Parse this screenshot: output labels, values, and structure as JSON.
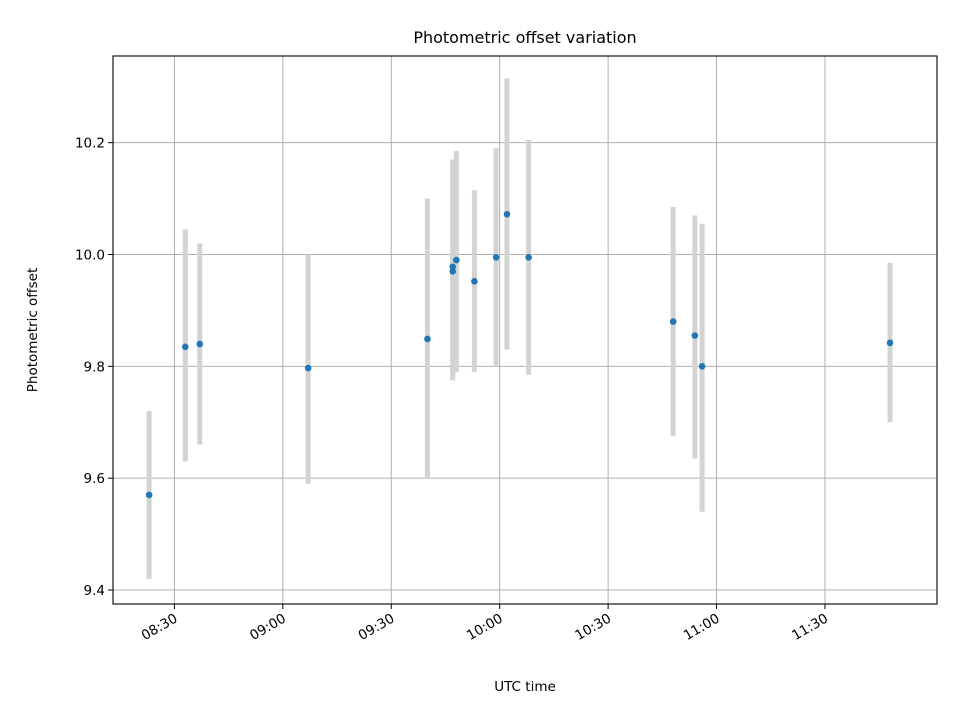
{
  "chart_data": {
    "type": "scatter",
    "title": "Photometric offset variation",
    "xlabel": "UTC time",
    "ylabel": "Photometric offset",
    "x_unit": "UTC clock time (HH:MM)",
    "xlim": [
      "08:13",
      "12:01"
    ],
    "ylim": [
      9.375,
      10.355
    ],
    "x_ticks": [
      "08:30",
      "09:00",
      "09:30",
      "10:00",
      "10:30",
      "11:00",
      "11:30"
    ],
    "y_ticks": [
      9.4,
      9.6,
      9.8,
      10.0,
      10.2
    ],
    "y_tick_labels": [
      "9.4",
      "9.6",
      "9.8",
      "10.0",
      "10.2"
    ],
    "grid": true,
    "legend": "none",
    "colors": {
      "points": "#1f77b4",
      "error_bars": "#d3d3d3"
    },
    "points": [
      {
        "x": "08:23",
        "y": 9.57,
        "ylo": 9.42,
        "yhi": 9.72
      },
      {
        "x": "08:33",
        "y": 9.835,
        "ylo": 9.63,
        "yhi": 10.045
      },
      {
        "x": "08:37",
        "y": 9.84,
        "ylo": 9.66,
        "yhi": 10.02
      },
      {
        "x": "09:07",
        "y": 9.797,
        "ylo": 9.59,
        "yhi": 10.0
      },
      {
        "x": "09:40",
        "y": 9.849,
        "ylo": 9.6,
        "yhi": 10.1
      },
      {
        "x": "09:47",
        "y": 9.97,
        "ylo": 9.775,
        "yhi": 10.16
      },
      {
        "x": "09:47",
        "y": 9.978,
        "ylo": 9.79,
        "yhi": 10.17
      },
      {
        "x": "09:48",
        "y": 9.99,
        "ylo": 9.79,
        "yhi": 10.185
      },
      {
        "x": "09:53",
        "y": 9.952,
        "ylo": 9.79,
        "yhi": 10.115
      },
      {
        "x": "09:59",
        "y": 9.995,
        "ylo": 9.8,
        "yhi": 10.19
      },
      {
        "x": "10:02",
        "y": 10.072,
        "ylo": 9.83,
        "yhi": 10.315
      },
      {
        "x": "10:08",
        "y": 9.995,
        "ylo": 9.785,
        "yhi": 10.205
      },
      {
        "x": "10:48",
        "y": 9.88,
        "ylo": 9.675,
        "yhi": 10.085
      },
      {
        "x": "10:54",
        "y": 9.855,
        "ylo": 9.635,
        "yhi": 10.07
      },
      {
        "x": "10:56",
        "y": 9.8,
        "ylo": 9.54,
        "yhi": 10.055
      },
      {
        "x": "11:48",
        "y": 9.842,
        "ylo": 9.7,
        "yhi": 9.985
      }
    ]
  }
}
